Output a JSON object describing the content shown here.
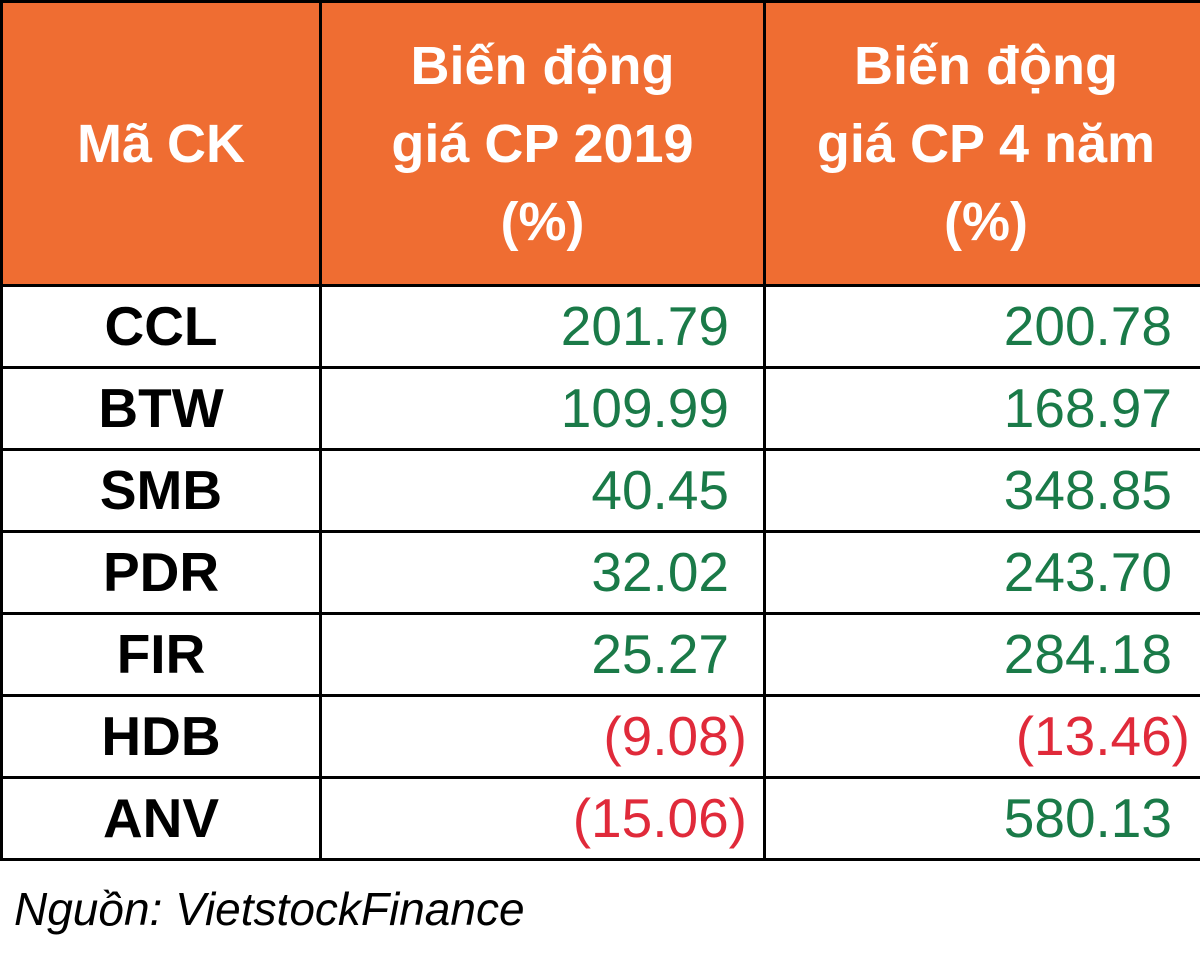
{
  "colors": {
    "header_bg": "#ef6d32",
    "header_text": "#ffffff",
    "positive": "#1a7a48",
    "negative": "#e02a3a"
  },
  "table": {
    "headers": [
      [
        "Mã CK"
      ],
      [
        "Biến động",
        "giá CP 2019",
        "(%)"
      ],
      [
        "Biến động",
        "giá CP 4 năm",
        "(%)"
      ]
    ],
    "rows": [
      {
        "code": "CCL",
        "change_2019": "201.79",
        "sign_2019": "pos",
        "change_4y": "200.78",
        "sign_4y": "pos"
      },
      {
        "code": "BTW",
        "change_2019": "109.99",
        "sign_2019": "pos",
        "change_4y": "168.97",
        "sign_4y": "pos"
      },
      {
        "code": "SMB",
        "change_2019": "40.45",
        "sign_2019": "pos",
        "change_4y": "348.85",
        "sign_4y": "pos"
      },
      {
        "code": "PDR",
        "change_2019": "32.02",
        "sign_2019": "pos",
        "change_4y": "243.70",
        "sign_4y": "pos"
      },
      {
        "code": "FIR",
        "change_2019": "25.27",
        "sign_2019": "pos",
        "change_4y": "284.18",
        "sign_4y": "pos"
      },
      {
        "code": "HDB",
        "change_2019": "(9.08)",
        "sign_2019": "neg",
        "change_4y": "(13.46)",
        "sign_4y": "neg"
      },
      {
        "code": "ANV",
        "change_2019": "(15.06)",
        "sign_2019": "neg",
        "change_4y": "580.13",
        "sign_4y": "pos"
      }
    ]
  },
  "source": "Nguồn: VietstockFinance"
}
